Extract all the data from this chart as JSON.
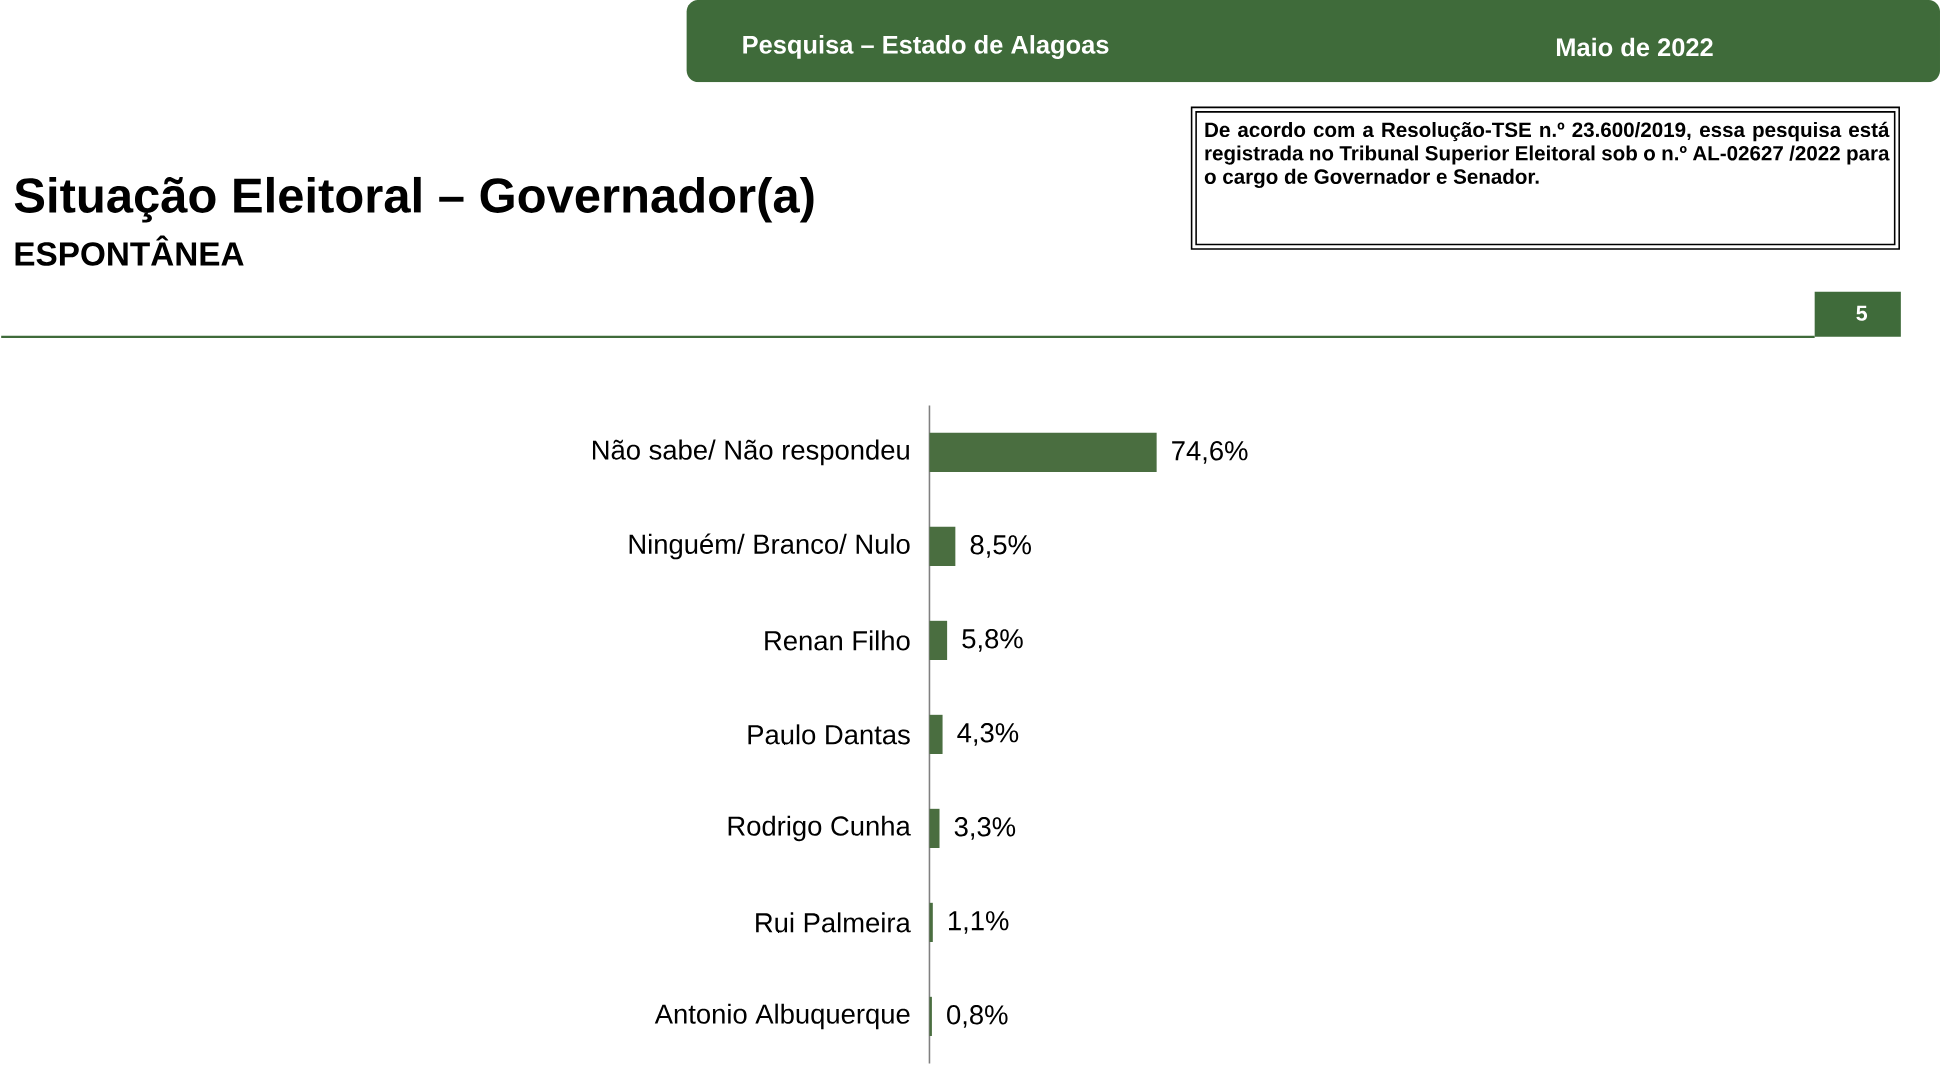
{
  "chart_data": {
    "type": "bar",
    "orientation": "horizontal",
    "title": "Situação Eleitoral – Governador(a)",
    "subtitle": "ESPONTÂNEA",
    "categories": [
      "Não sabe/ Não respondeu",
      "Ninguém/ Branco/ Nulo",
      "Renan Filho",
      "Paulo Dantas",
      "Rodrigo Cunha",
      "Rui Palmeira",
      "Antonio Albuquerque"
    ],
    "values": [
      74.6,
      8.5,
      5.8,
      4.3,
      3.3,
      1.1,
      0.8
    ],
    "value_labels": [
      "74,6%",
      "8,5%",
      "5,8%",
      "4,3%",
      "3,3%",
      "1,1%",
      "0,8%"
    ],
    "color": "#4a6e40",
    "annotations": [
      "Pesquisa – Estado de Alagoas",
      "Maio de 2022",
      "De acordo com a Resolução-TSE n.º 23.600/2019, essa pesquisa está registrada no Tribunal Superior Eleitoral sob o n.º AL-02627 /2022 para o cargo de Governador e Senador.",
      "5"
    ]
  }
}
